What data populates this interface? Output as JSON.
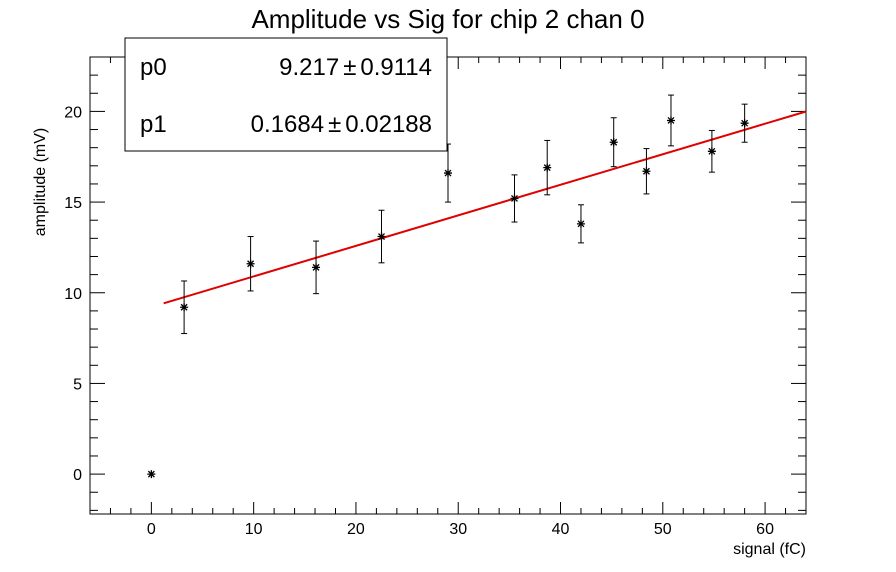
{
  "chart_data": {
    "type": "scatter",
    "title": "Amplitude vs Sig for chip 2 chan 0",
    "xlabel": "signal (fC)",
    "ylabel": "amplitude (mV)",
    "xlim": [
      -6,
      64
    ],
    "ylim": [
      -2.2,
      23
    ],
    "x_ticks": [
      0,
      10,
      20,
      30,
      40,
      50,
      60
    ],
    "y_ticks": [
      0,
      5,
      10,
      15,
      20
    ],
    "grid": false,
    "series": [
      {
        "marker": "asterisk",
        "color": "#000000",
        "points": [
          {
            "x": 0,
            "y": 0,
            "err": 0
          },
          {
            "x": 3.2,
            "y": 9.2,
            "err": 1.45
          },
          {
            "x": 9.7,
            "y": 11.6,
            "err": 1.5
          },
          {
            "x": 16.1,
            "y": 11.4,
            "err": 1.45
          },
          {
            "x": 22.5,
            "y": 13.1,
            "err": 1.45
          },
          {
            "x": 29.0,
            "y": 16.6,
            "err": 1.6
          },
          {
            "x": 35.5,
            "y": 15.2,
            "err": 1.3
          },
          {
            "x": 38.7,
            "y": 16.9,
            "err": 1.5
          },
          {
            "x": 42.0,
            "y": 13.8,
            "err": 1.05
          },
          {
            "x": 45.2,
            "y": 18.3,
            "err": 1.35
          },
          {
            "x": 48.4,
            "y": 16.7,
            "err": 1.25
          },
          {
            "x": 50.8,
            "y": 19.5,
            "err": 1.4
          },
          {
            "x": 54.8,
            "y": 17.8,
            "err": 1.15
          },
          {
            "x": 58.0,
            "y": 19.35,
            "err": 1.05
          }
        ]
      }
    ],
    "fit": {
      "color": "#e00000",
      "x_range": [
        1.2,
        64
      ],
      "p0": 9.217,
      "p1": 0.1684
    },
    "stats": [
      {
        "name": "p0",
        "value": "9.217",
        "error": "0.9114"
      },
      {
        "name": "p1",
        "value": "0.1684",
        "error": "0.02188"
      }
    ],
    "stats_placement": "top-left",
    "pm_symbol": "±"
  }
}
